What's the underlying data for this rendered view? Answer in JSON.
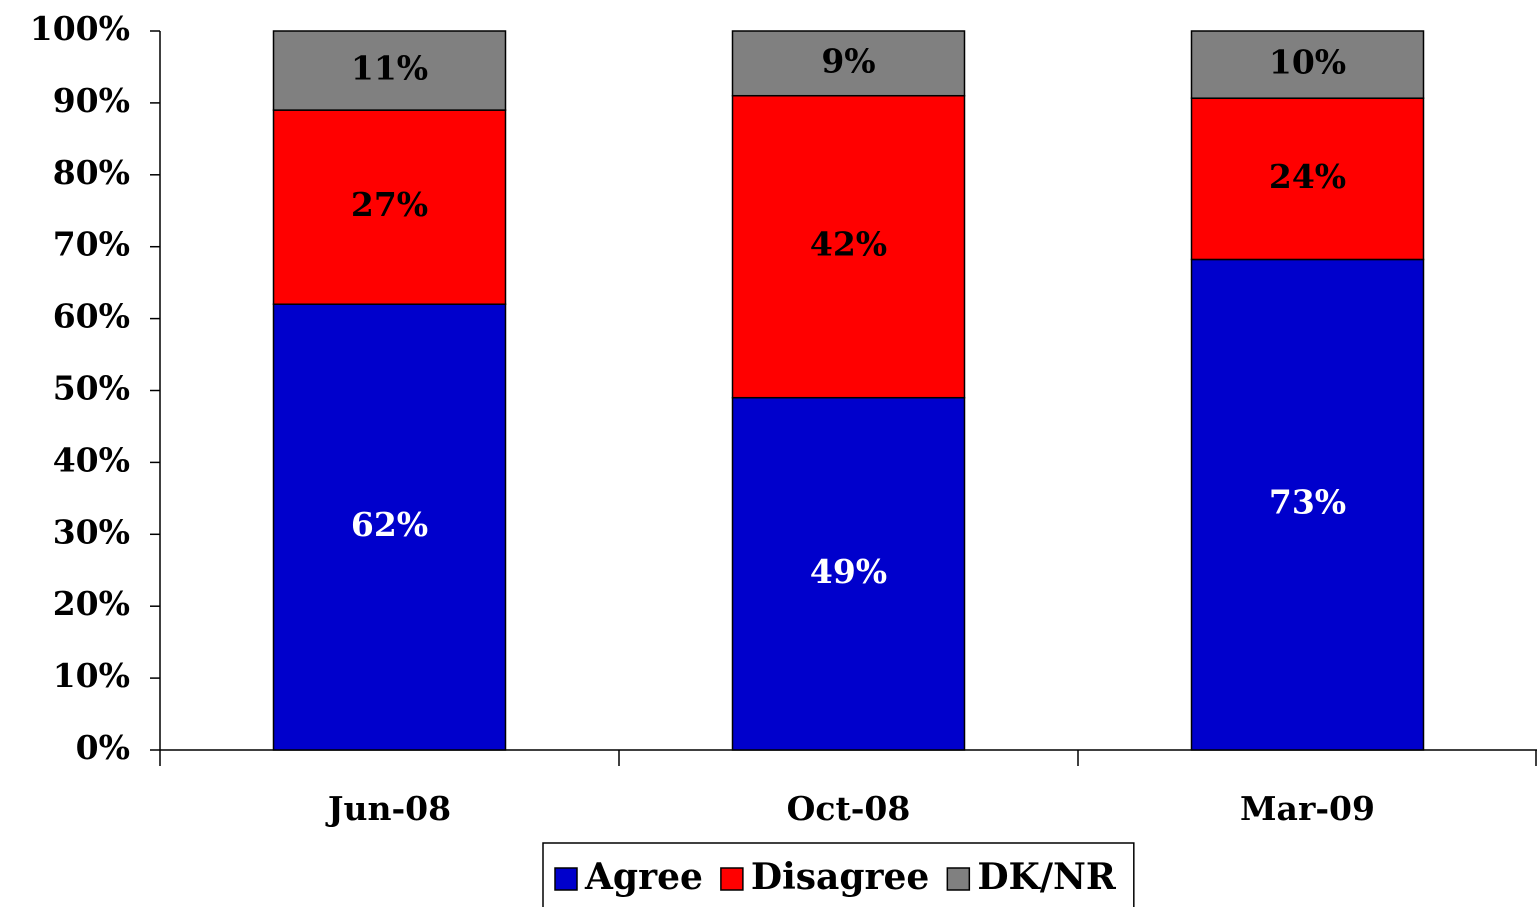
{
  "chart_data": {
    "type": "stacked-bar",
    "stacking": "percent",
    "categories": [
      "Jun-08",
      "Oct-08",
      "Mar-09"
    ],
    "series": [
      {
        "name": "Agree",
        "color": "#0000cc",
        "label_color": "#ffffff",
        "values": [
          62,
          49,
          73
        ],
        "value_labels": [
          "62%",
          "49%",
          "73%"
        ]
      },
      {
        "name": "Disagree",
        "color": "#ff0000",
        "label_color": "#000000",
        "values": [
          27,
          42,
          24
        ],
        "value_labels": [
          "27%",
          "42%",
          "24%"
        ]
      },
      {
        "name": "DK/NR",
        "color": "#808080",
        "label_color": "#000000",
        "values": [
          11,
          9,
          10
        ],
        "value_labels": [
          "11%",
          "9%",
          "10%"
        ]
      }
    ],
    "ylim": [
      0,
      100
    ],
    "yticks": [
      {
        "value": 0,
        "label": "0%"
      },
      {
        "value": 10,
        "label": "10%"
      },
      {
        "value": 20,
        "label": "20%"
      },
      {
        "value": 30,
        "label": "30%"
      },
      {
        "value": 40,
        "label": "40%"
      },
      {
        "value": 50,
        "label": "50%"
      },
      {
        "value": 60,
        "label": "60%"
      },
      {
        "value": 70,
        "label": "70%"
      },
      {
        "value": 80,
        "label": "80%"
      },
      {
        "value": 90,
        "label": "90%"
      },
      {
        "value": 100,
        "label": "100%"
      }
    ],
    "grid": false,
    "legend": "bottom"
  }
}
